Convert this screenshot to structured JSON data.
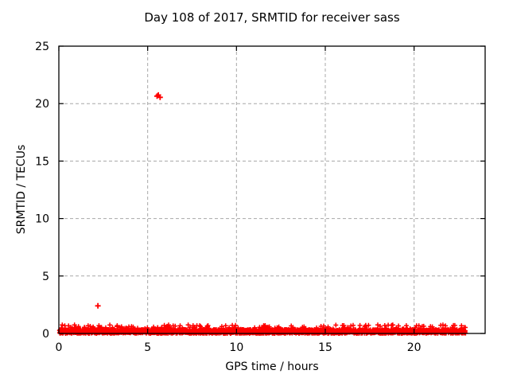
{
  "chart_data": {
    "type": "scatter",
    "title": "Day 108 of 2017, SRMTID for receiver sass",
    "xlabel": "GPS time / hours",
    "ylabel": "SRMTID / TECUs",
    "xlim": [
      0,
      24
    ],
    "ylim": [
      0,
      25
    ],
    "xticks": [
      0,
      5,
      10,
      15,
      20
    ],
    "yticks": [
      0,
      5,
      10,
      15,
      20,
      25
    ],
    "grid": true,
    "legend": "none",
    "marker": "plus",
    "colors": {
      "series": "#ff0000",
      "grid": "#a8a8a8",
      "axis": "#000000",
      "background": "#ffffff",
      "text": "#000000"
    },
    "series": [
      {
        "name": "SRMTID near-zero baseline band",
        "representation": "generated-band",
        "x_start": 0.03,
        "x_end": 22.9,
        "n_points": 2400,
        "y_base_max": 0.35,
        "y_spike_max": 0.75,
        "spike_fraction": 0.12,
        "seed": 108
      },
      {
        "name": "outlier points",
        "representation": "points",
        "points": [
          [
            2.2,
            2.4
          ],
          [
            5.53,
            20.65
          ],
          [
            5.6,
            20.75
          ],
          [
            5.7,
            20.55
          ]
        ]
      }
    ]
  }
}
